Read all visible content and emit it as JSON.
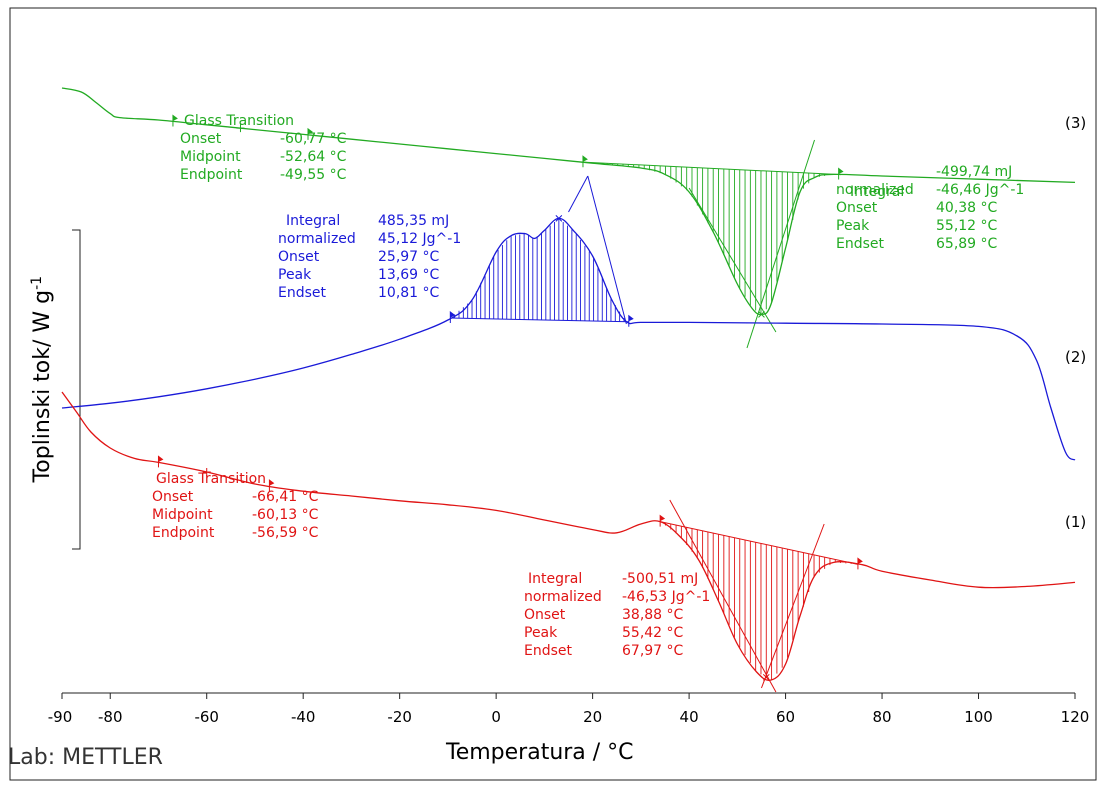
{
  "chart_data": {
    "type": "line",
    "xlabel": "Temperatura / °C",
    "ylabel": "Toplinski tok/ W g",
    "ylabel_superscript": "-1",
    "footer": "Lab: METTLER",
    "xlim": [
      -90,
      120
    ],
    "x_ticks": [
      "-90",
      "-80",
      "-60",
      "-40",
      "-20",
      "0",
      "20",
      "40",
      "60",
      "80",
      "100",
      "120"
    ],
    "series": [
      {
        "name": "(3)",
        "color": "#22aa22",
        "x": [
          -90,
          -86,
          -83,
          -80,
          -78,
          -70,
          -60,
          -50,
          -40,
          -30,
          -20,
          -10,
          0,
          10,
          20,
          30,
          35,
          40,
          45,
          50,
          53,
          55,
          57,
          60,
          63,
          66,
          70,
          80,
          100,
          120
        ],
        "y": [
          -10.0,
          -10.5,
          -11.8,
          -13.2,
          -13.7,
          -14.0,
          -14.6,
          -15.2,
          -15.8,
          -16.4,
          -17.0,
          -17.6,
          -18.2,
          -18.8,
          -19.4,
          -20.0,
          -20.8,
          -23.0,
          -28.0,
          -34.5,
          -37.5,
          -38.3,
          -37.0,
          -30.0,
          -23.0,
          -21.2,
          -20.8,
          -21.0,
          -21.4,
          -21.8
        ]
      },
      {
        "name": "(2)",
        "color": "#1a1ad8",
        "x": [
          -90,
          -80,
          -70,
          -60,
          -50,
          -40,
          -30,
          -20,
          -10,
          -5,
          0,
          3,
          6,
          8,
          10,
          13,
          16,
          20,
          24,
          27,
          30,
          40,
          60,
          80,
          100,
          108,
          112,
          115,
          118,
          120
        ],
        "y": [
          -50.0,
          -49.4,
          -48.6,
          -47.6,
          -46.4,
          -45.0,
          -43.3,
          -41.4,
          -39.0,
          -36.5,
          -30.5,
          -28.5,
          -28.2,
          -28.8,
          -27.8,
          -26.3,
          -27.8,
          -31.0,
          -36.5,
          -39.2,
          -39.3,
          -39.3,
          -39.4,
          -39.5,
          -39.8,
          -41.0,
          -44.0,
          -50.0,
          -55.5,
          -56.5
        ]
      },
      {
        "name": "(1)",
        "color": "#e01414",
        "x": [
          -90,
          -87,
          -84,
          -80,
          -75,
          -70,
          -60,
          -50,
          -40,
          -30,
          -20,
          -10,
          0,
          10,
          20,
          25,
          30,
          34,
          38,
          42,
          46,
          50,
          54,
          57,
          60,
          63,
          66,
          70,
          76,
          80,
          90,
          100,
          110,
          120
        ],
        "y": [
          -48.0,
          -50.5,
          -53.0,
          -55.0,
          -56.3,
          -56.8,
          -58.0,
          -59.5,
          -60.4,
          -61.0,
          -61.6,
          -62.1,
          -62.8,
          -64.0,
          -65.2,
          -65.6,
          -64.5,
          -64.2,
          -66.0,
          -69.0,
          -74.0,
          -79.5,
          -83.0,
          -84.0,
          -82.0,
          -76.0,
          -71.0,
          -69.3,
          -69.6,
          -70.4,
          -71.5,
          -72.4,
          -72.3,
          -71.8
        ]
      }
    ],
    "curve_labels": [
      "(3)",
      "(2)",
      "(1)"
    ],
    "annotations": {
      "s3_glass": {
        "title": "Glass Transition",
        "rows": [
          {
            "k": "Onset",
            "v": "-60,77 °C"
          },
          {
            "k": "Midpoint",
            "v": "-52,64 °C"
          },
          {
            "k": "Endpoint",
            "v": "-49,55 °C"
          }
        ]
      },
      "s3_integral": {
        "rows": [
          {
            "k": "",
            "v": "-499,74 mJ"
          },
          {
            "k": "normalized",
            "v": "-46,46 Jg^-1"
          },
          {
            "k": "Onset",
            "v": "40,38 °C"
          },
          {
            "k": "Peak",
            "v": "55,12 °C"
          },
          {
            "k": "Endset",
            "v": "65,89 °C"
          }
        ],
        "overlap_label": "Integral"
      },
      "s2_integral": {
        "rows": [
          {
            "k": "Integral",
            "v": "485,35 mJ"
          },
          {
            "k": "normalized",
            "v": "45,12 Jg^-1"
          },
          {
            "k": "Onset",
            "v": "25,97 °C"
          },
          {
            "k": "Peak",
            "v": "13,69 °C"
          },
          {
            "k": "Endset",
            "v": "10,81 °C"
          }
        ]
      },
      "s1_glass": {
        "title": "Glass Transition",
        "rows": [
          {
            "k": "Onset",
            "v": "-66,41 °C"
          },
          {
            "k": "Midpoint",
            "v": "-60,13 °C"
          },
          {
            "k": "Endpoint",
            "v": "-56,59 °C"
          }
        ]
      },
      "s1_integral": {
        "rows": [
          {
            "k": "Integral",
            "v": "-500,51 mJ"
          },
          {
            "k": "normalized",
            "v": "-46,53 Jg^-1"
          },
          {
            "k": "Onset",
            "v": "38,88 °C"
          },
          {
            "k": "Peak",
            "v": "55,42 °C"
          },
          {
            "k": "Endset",
            "v": "67,97 °C"
          }
        ]
      }
    }
  }
}
